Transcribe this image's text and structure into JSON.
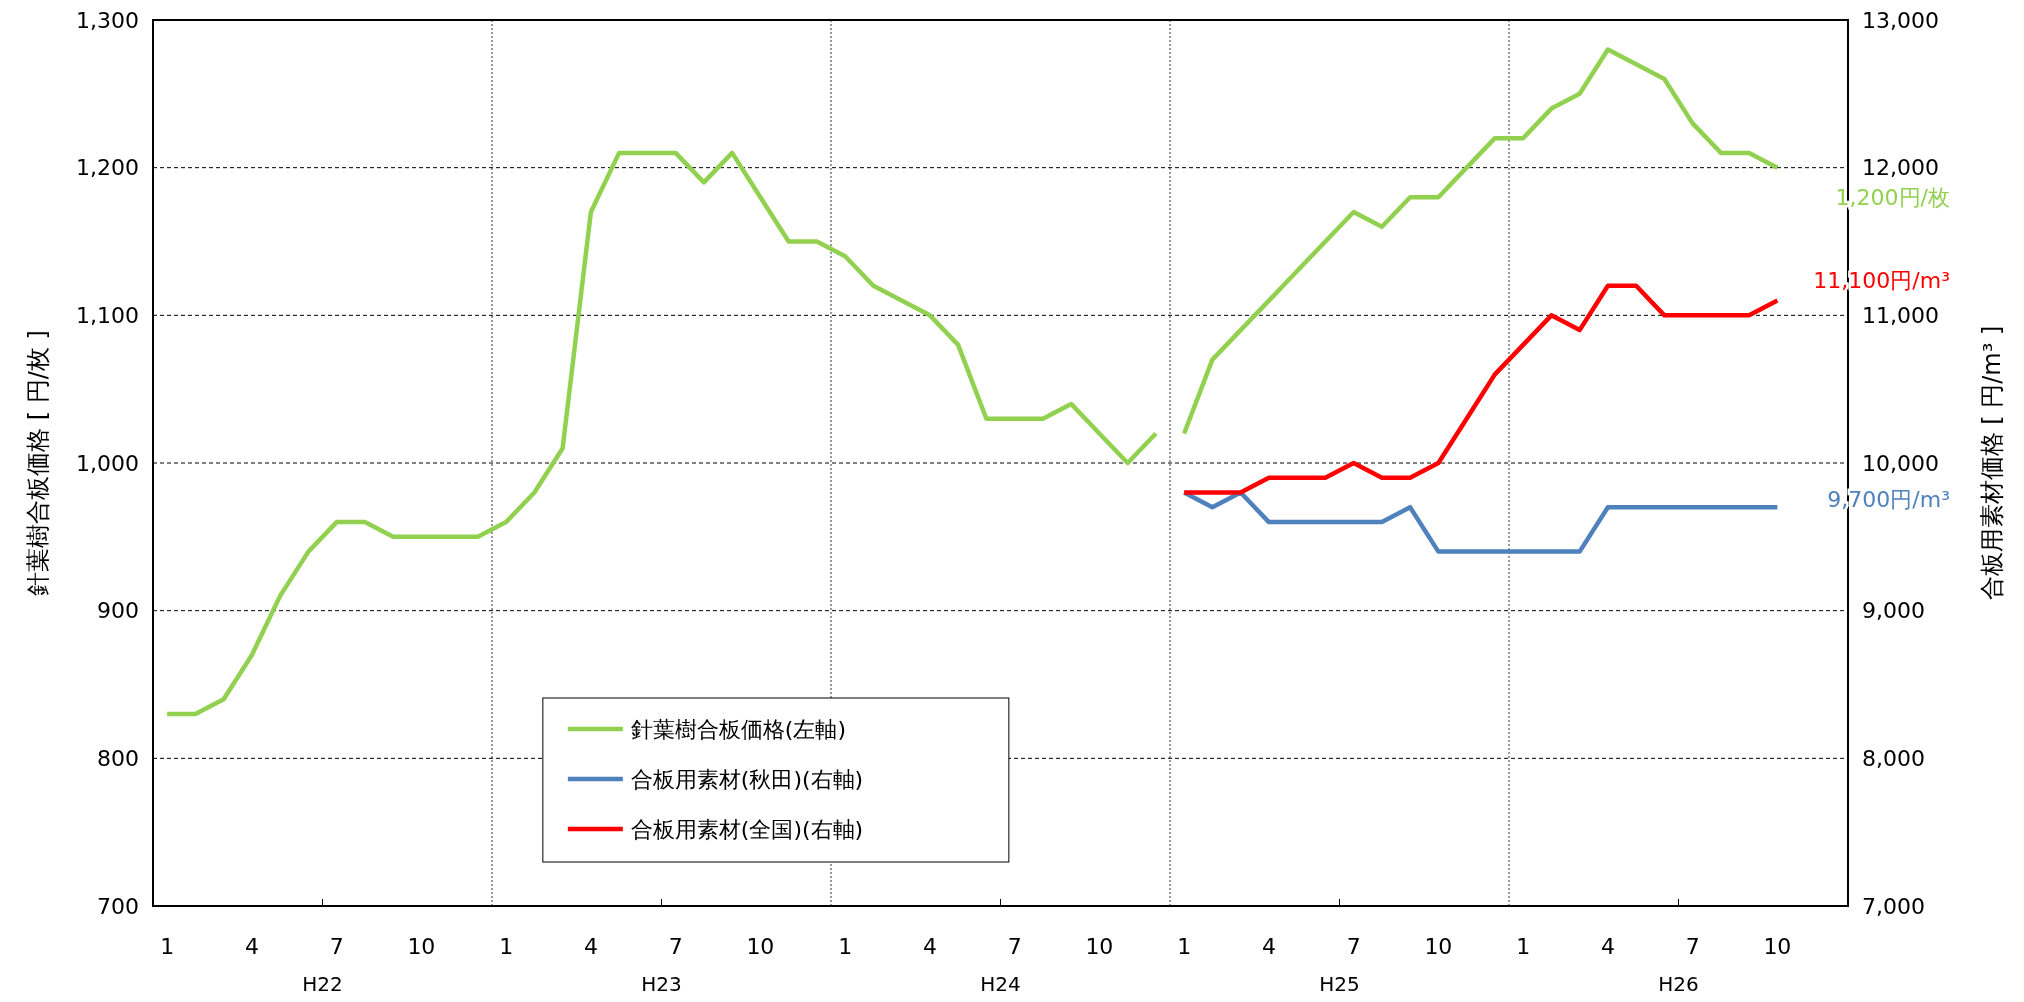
{
  "chart_data": {
    "type": "line",
    "ylabel": "針葉樹合板価格 [ 円/枚 ]",
    "y2label": "合板用素材価格 [ 円/m³ ]",
    "categories": [
      "1",
      null,
      null,
      "4",
      null,
      null,
      "7",
      null,
      null,
      "10",
      null,
      null,
      "1",
      null,
      null,
      "4",
      null,
      null,
      "7",
      null,
      null,
      "10",
      null,
      null,
      "1",
      null,
      null,
      "4",
      null,
      null,
      "7",
      null,
      null,
      "10",
      null,
      null,
      "1",
      null,
      null,
      "4",
      null,
      null,
      "7",
      null,
      null,
      "10",
      null,
      null,
      "1",
      null,
      null,
      "4",
      null,
      null,
      "7",
      null,
      null,
      "10",
      null,
      null
    ],
    "ylim": [
      700,
      1300
    ],
    "yticks": [
      700,
      800,
      900,
      {
        "value": 1000,
        "label": "1,000"
      },
      {
        "value": 1100,
        "label": "1,100"
      },
      {
        "value": 1200,
        "label": "1,200"
      },
      {
        "value": 1300,
        "label": "1,300"
      }
    ],
    "y2lim": [
      7000,
      13000
    ],
    "y2ticks": [
      {
        "value": 7000,
        "label": "7,000"
      },
      {
        "value": 8000,
        "label": "8,000"
      },
      {
        "value": 9000,
        "label": "9,000"
      },
      {
        "value": 10000,
        "label": "10,000"
      },
      {
        "value": 11000,
        "label": "11,000"
      },
      {
        "value": 12000,
        "label": "12,000"
      },
      {
        "value": 13000,
        "label": "13,000"
      }
    ],
    "grid": true,
    "legend": "bottom",
    "series": [
      {
        "name": "針葉樹合板価格(左軸)",
        "color": "#92d050",
        "values": [
          830,
          830,
          840,
          870,
          910,
          940,
          960,
          960,
          950,
          950,
          950,
          950,
          960,
          980,
          1010,
          1170,
          1210,
          1210,
          1210,
          1190,
          1210,
          1180,
          1150,
          1150,
          1140,
          1120,
          1110,
          1100,
          1080,
          1030,
          1030,
          1030,
          1040,
          1020,
          1000,
          1020,
          null,
          null,
          null,
          null,
          null,
          null,
          null,
          null,
          null,
          null,
          null,
          null,
          null,
          null,
          null,
          null,
          null,
          null,
          null,
          null,
          null,
          null,
          null,
          null
        ]
      },
      {
        "color": "#92d050",
        "values": [
          null,
          null,
          null,
          null,
          null,
          null,
          null,
          null,
          null,
          null,
          null,
          null,
          null,
          null,
          null,
          null,
          null,
          null,
          null,
          null,
          null,
          null,
          null,
          null,
          null,
          null,
          null,
          null,
          null,
          null,
          null,
          null,
          null,
          null,
          null,
          null,
          1020,
          1070,
          1090,
          1110,
          1130,
          1150,
          1170,
          1160,
          1180,
          1180,
          1200,
          1220,
          1220,
          1240,
          1250,
          1280,
          1270,
          1260,
          1230,
          1210,
          1210,
          1200,
          null,
          null
        ]
      },
      {
        "name": "合板用素材(秋田)(右軸)",
        "color": "#4f81bd",
        "axis": "y2",
        "values": [
          null,
          null,
          null,
          null,
          null,
          null,
          null,
          null,
          null,
          null,
          null,
          null,
          null,
          null,
          null,
          null,
          null,
          null,
          null,
          null,
          null,
          null,
          null,
          null,
          null,
          null,
          null,
          null,
          null,
          null,
          null,
          null,
          null,
          null,
          null,
          null,
          9800,
          9700,
          9800,
          9600,
          9600,
          9600,
          9600,
          9600,
          9700,
          9400,
          9400,
          9400,
          9400,
          9400,
          9400,
          9700,
          9700,
          9700,
          9700,
          9700,
          9700,
          9700,
          null,
          null
        ]
      },
      {
        "name": "合板用素材(全国)(右軸)",
        "color": "#ff0000",
        "axis": "y2",
        "values": [
          null,
          null,
          null,
          null,
          null,
          null,
          null,
          null,
          null,
          null,
          null,
          null,
          null,
          null,
          null,
          null,
          null,
          null,
          null,
          null,
          null,
          null,
          null,
          null,
          null,
          null,
          null,
          null,
          null,
          null,
          null,
          null,
          null,
          null,
          null,
          null,
          9800,
          9800,
          9800,
          9900,
          9900,
          9900,
          10000,
          9900,
          9900,
          10000,
          10300,
          10600,
          10800,
          11000,
          10900,
          11200,
          11200,
          11000,
          11000,
          11000,
          11000,
          11100,
          null,
          null
        ]
      }
    ],
    "annotations": [
      "H22",
      "H23",
      "H24",
      "H25",
      "H26",
      "1,200円/枚",
      "11,100円/m³",
      "9,700円/m³"
    ]
  }
}
